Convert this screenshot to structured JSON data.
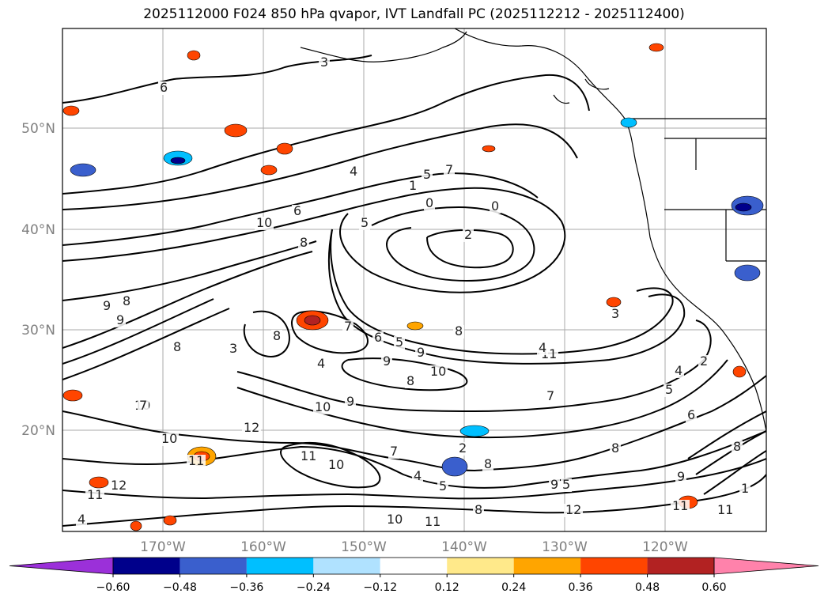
{
  "title": "2025112000 F024 850 hPa qvapor, IVT Landfall PC (2025112212 - 2025112400)",
  "lat_labels": [
    "50°N",
    "40°N",
    "30°N",
    "20°N"
  ],
  "lon_labels": [
    "170°W",
    "160°W",
    "150°W",
    "140°W",
    "130°W",
    "120°W"
  ],
  "colorbar": {
    "ticks": [
      "−0.60",
      "−0.48",
      "−0.36",
      "−0.24",
      "−0.12",
      "0.12",
      "0.24",
      "0.36",
      "0.48",
      "0.60"
    ],
    "colors": {
      "under": "#9b30d9",
      "bins": [
        "#00008b",
        "#3a5fcd",
        "#00bfff",
        "#b0e2ff",
        "#ffffff",
        "#ffe98a",
        "#ffa500",
        "#ff4500",
        "#b22222"
      ],
      "over": "#ff82ab"
    }
  },
  "contour_labels": [
    "2",
    "3",
    "4",
    "5",
    "6",
    "7",
    "1",
    "0",
    "0",
    "2",
    "5",
    "10",
    "8",
    "9",
    "8",
    "9",
    "8",
    "3",
    "8",
    "4",
    "7",
    "6",
    "5",
    "8",
    "9",
    "9",
    "10",
    "8",
    "11",
    "10",
    "7",
    "9",
    "10",
    "10",
    "11",
    "12",
    "11",
    "10",
    "7",
    "8",
    "9",
    "12",
    "11",
    "4",
    "3",
    "2",
    "4",
    "5",
    "6",
    "7",
    "4",
    "8",
    "5",
    "12",
    "11",
    "9",
    "11",
    "1",
    "2",
    "4",
    "5",
    "10",
    "11",
    "8",
    "8",
    "6"
  ]
}
